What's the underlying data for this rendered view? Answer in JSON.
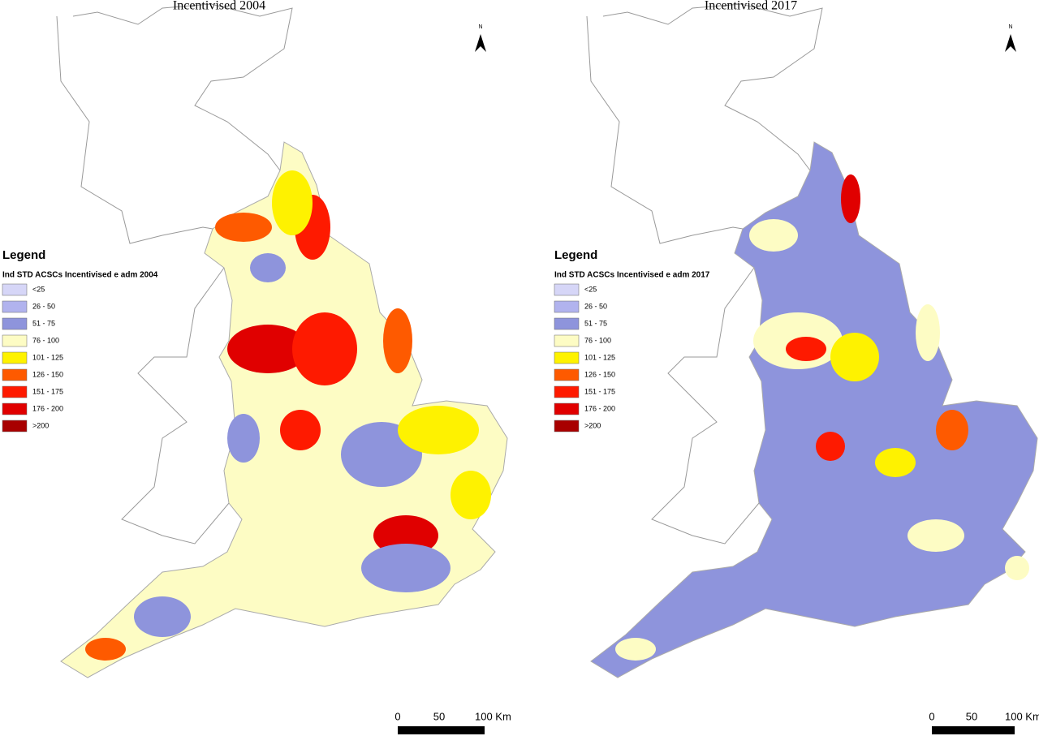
{
  "panels": [
    {
      "title": "Incentivised 2004",
      "legend": {
        "title": "Legend",
        "subtitle": "Ind STD ACSCs Incentivised e adm 2004",
        "items": [
          {
            "label": "<25",
            "color": "#d6d6f7"
          },
          {
            "label": "26 - 50",
            "color": "#b1b3ee"
          },
          {
            "label": "51 - 75",
            "color": "#8e94dc"
          },
          {
            "label": "76 - 100",
            "color": "#fdfcc4"
          },
          {
            "label": "101 - 125",
            "color": "#fef200"
          },
          {
            "label": "126 - 150",
            "color": "#fe5a00"
          },
          {
            "label": "151 - 175",
            "color": "#fe1a00"
          },
          {
            "label": "176 - 200",
            "color": "#e00000"
          },
          {
            "label": ">200",
            "color": "#a80000"
          }
        ]
      },
      "north": "N",
      "scale": [
        "0",
        "50",
        "100 Km"
      ]
    },
    {
      "title": "Incentivised 2017",
      "legend": {
        "title": "Legend",
        "subtitle": "Ind STD ACSCs Incentivised e adm 2017",
        "items": [
          {
            "label": "<25",
            "color": "#d6d6f7"
          },
          {
            "label": "26 - 50",
            "color": "#b1b3ee"
          },
          {
            "label": "51 - 75",
            "color": "#8e94dc"
          },
          {
            "label": "76 - 100",
            "color": "#fdfcc4"
          },
          {
            "label": "101 - 125",
            "color": "#fef200"
          },
          {
            "label": "126 - 150",
            "color": "#fe5a00"
          },
          {
            "label": "151 - 175",
            "color": "#fe1a00"
          },
          {
            "label": "176 - 200",
            "color": "#e00000"
          },
          {
            "label": ">200",
            "color": "#a80000"
          }
        ]
      },
      "north": "N",
      "scale": [
        "0",
        "50",
        "100 Km"
      ]
    }
  ]
}
